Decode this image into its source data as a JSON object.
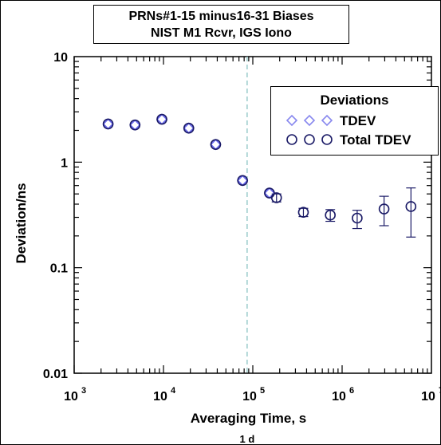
{
  "chart_data": {
    "type": "scatter",
    "title": [
      "PRNs#1-15 minus16-31 Biases",
      "NIST M1 Rcvr, IGS Iono"
    ],
    "xlabel": "Averaging Time, s",
    "ylabel": "Deviation/ns",
    "x_scale": "log",
    "y_scale": "log",
    "xlim": [
      1000,
      10000000
    ],
    "ylim": [
      0.01,
      10
    ],
    "x_ticks": [
      {
        "value": 1000,
        "base": "10",
        "exp": "3"
      },
      {
        "value": 10000,
        "base": "10",
        "exp": "4"
      },
      {
        "value": 100000,
        "base": "10",
        "exp": "5"
      },
      {
        "value": 1000000,
        "base": "10",
        "exp": "6"
      },
      {
        "value": 10000000,
        "base": "10",
        "exp": "7"
      }
    ],
    "y_ticks": [
      {
        "value": 10,
        "label": "10"
      },
      {
        "value": 1,
        "label": "1"
      },
      {
        "value": 0.1,
        "label": "0.1"
      },
      {
        "value": 0.01,
        "label": "0.01"
      }
    ],
    "annotation": {
      "x": 86400,
      "label": "1 d"
    },
    "legend": {
      "title": "Deviations",
      "position": "top-right"
    },
    "colors": {
      "tdev": "#6666ee",
      "total_tdev": "#1a1a66",
      "marker_line": "#99cccc",
      "axis": "#000000"
    },
    "series": [
      {
        "name": "TDEV",
        "marker": "diamond",
        "x": [
          2400,
          4800,
          9600,
          19200,
          38400,
          76800,
          153600
        ],
        "y": [
          2.3,
          2.25,
          2.55,
          2.1,
          1.47,
          0.67,
          0.51
        ]
      },
      {
        "name": "Total TDEV",
        "marker": "circle",
        "x": [
          2400,
          4800,
          9600,
          19200,
          38400,
          76800,
          153600,
          184320,
          368640,
          737280,
          1474560,
          2949120,
          5898240
        ],
        "y": [
          2.3,
          2.25,
          2.55,
          2.1,
          1.47,
          0.67,
          0.51,
          0.46,
          0.335,
          0.315,
          0.295,
          0.36,
          0.38
        ],
        "err_low": [
          null,
          null,
          null,
          null,
          null,
          null,
          null,
          0.42,
          0.305,
          0.275,
          0.235,
          0.25,
          0.195
        ],
        "err_high": [
          null,
          null,
          null,
          null,
          null,
          null,
          null,
          0.5,
          0.365,
          0.355,
          0.35,
          0.475,
          0.57
        ]
      }
    ]
  }
}
